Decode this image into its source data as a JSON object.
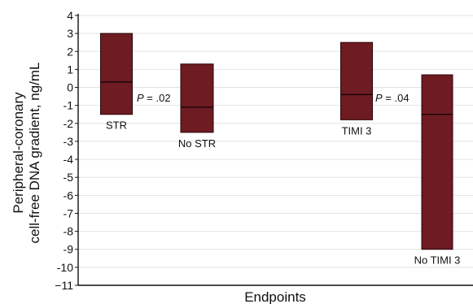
{
  "chart_data": {
    "type": "box",
    "xlabel": "Endpoints",
    "ylabel_line1": "Peripheral-coronary",
    "ylabel_line2": "cell-free DNA gradient, ng/mL",
    "ylim": [
      -11,
      4
    ],
    "yticks": [
      "4",
      "3",
      "2",
      "1",
      "0",
      "-1",
      "-2",
      "-3",
      "-4",
      "-5",
      "-6",
      "-7",
      "-8",
      "-9",
      "-10",
      "−11"
    ],
    "grid": true,
    "box_color": "#6f1b22",
    "box_edge_color": "#2a0508",
    "groups": [
      {
        "name": "STR",
        "low": -1.5,
        "median": 0.3,
        "high": 3.0
      },
      {
        "name": "No STR",
        "low": -2.5,
        "median": -1.1,
        "high": 1.3
      },
      {
        "name": "TIMI 3",
        "low": -1.8,
        "median": -0.4,
        "high": 2.5
      },
      {
        "name": "No TIMI 3",
        "low": -9.0,
        "median": -1.5,
        "high": 0.7
      }
    ],
    "annotations": [
      {
        "p_symbol": "P",
        "p_value": "= .02",
        "between": [
          "STR",
          "No STR"
        ]
      },
      {
        "p_symbol": "P",
        "p_value": "= .04",
        "between": [
          "TIMI 3",
          "No TIMI 3"
        ]
      }
    ]
  }
}
